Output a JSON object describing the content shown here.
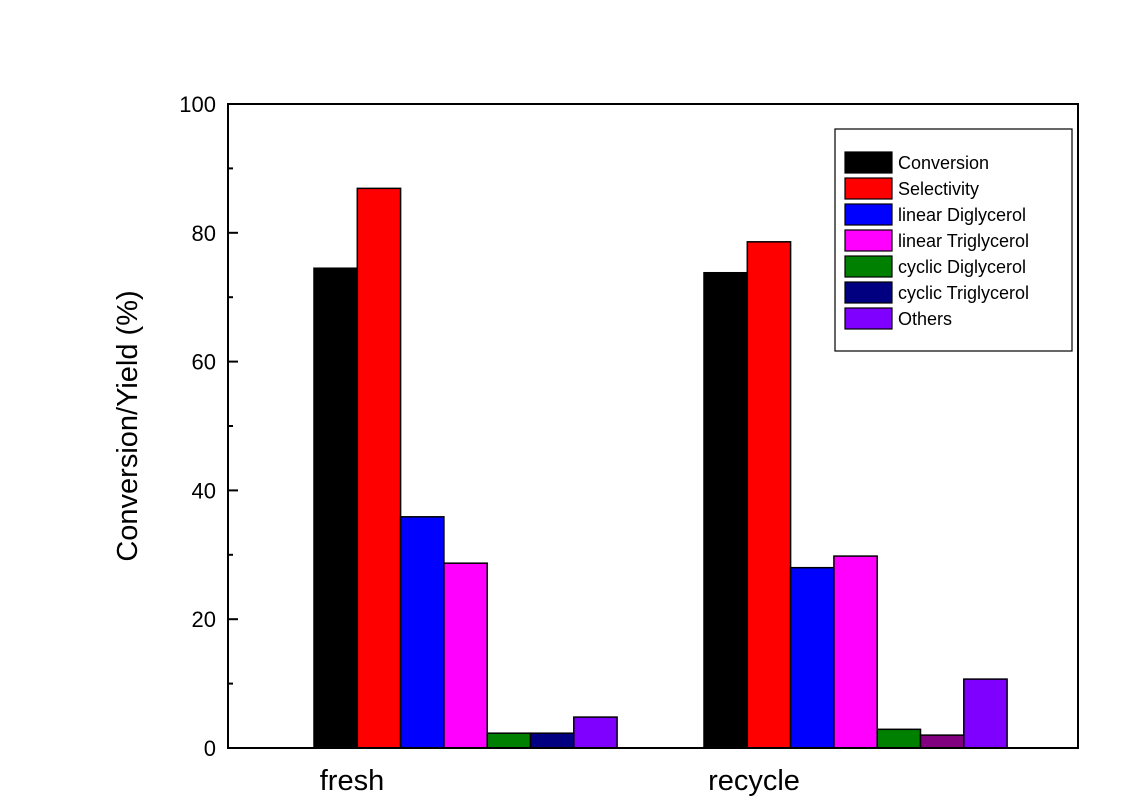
{
  "chart_data": {
    "type": "bar",
    "title": "",
    "xlabel": "",
    "ylabel": "Conversion/Yield (%)",
    "ylim": [
      0,
      100
    ],
    "yticks": [
      0,
      20,
      40,
      60,
      80,
      100
    ],
    "grid": false,
    "legend_position": "top-right",
    "categories": [
      "fresh",
      "recycle"
    ],
    "series": [
      {
        "name": "Conversion",
        "colors": [
          "#000000",
          "#000000"
        ],
        "values": [
          74.5,
          73.8
        ]
      },
      {
        "name": "Selectivity",
        "colors": [
          "#ff0000",
          "#ff0000"
        ],
        "values": [
          86.9,
          78.6
        ]
      },
      {
        "name": "linear Diglycerol",
        "colors": [
          "#0000ff",
          "#0000ff"
        ],
        "values": [
          35.9,
          28.0
        ]
      },
      {
        "name": "linear Triglycerol",
        "colors": [
          "#ff00ff",
          "#ff00ff"
        ],
        "values": [
          28.7,
          29.8
        ]
      },
      {
        "name": "cyclic Diglycerol",
        "colors": [
          "#008000",
          "#008000"
        ],
        "values": [
          2.3,
          2.9
        ]
      },
      {
        "name": "cyclic Triglycerol",
        "colors": [
          "#000080",
          "#800080"
        ],
        "values": [
          2.3,
          2.0
        ]
      },
      {
        "name": "Others",
        "colors": [
          "#8000ff",
          "#8000ff"
        ],
        "values": [
          4.8,
          10.7
        ]
      }
    ]
  }
}
